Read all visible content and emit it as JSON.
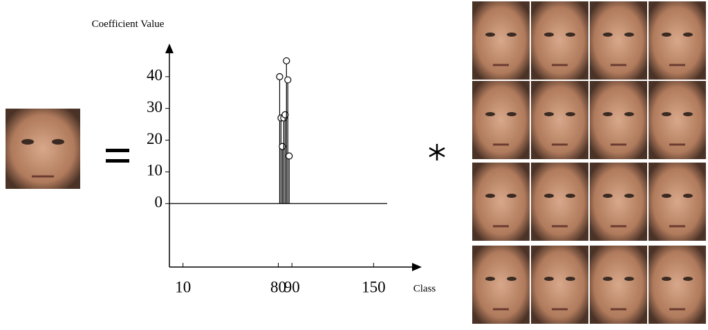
{
  "chart_data": {
    "type": "stem",
    "y_label": "Coefficient Value",
    "x_label": "Class",
    "x": [
      81,
      82,
      83,
      84,
      85,
      86,
      87,
      88
    ],
    "values": [
      40,
      27,
      18,
      27,
      28,
      45,
      39,
      15
    ],
    "color": "#000000",
    "xlim": [
      0,
      160
    ],
    "xticks": [
      10,
      80,
      90,
      150
    ],
    "ylim": [
      -20,
      50
    ],
    "yticks": [
      0,
      10,
      20,
      30,
      40
    ]
  }
}
